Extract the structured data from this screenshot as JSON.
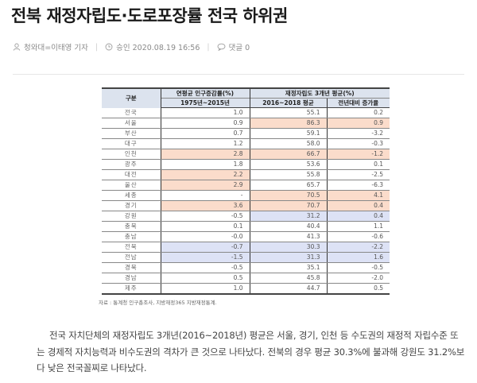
{
  "article": {
    "headline": "전북 재정자립도·도로포장률 전국 하위권",
    "meta": {
      "author_icon": "person-icon",
      "author": "청와대=이태영 기자",
      "approved_icon": "clock-icon",
      "approved": "승인 2020.08.19 16:56",
      "comments_icon": "speech-bubble-icon",
      "comments": "댓글 0",
      "separator": "|"
    },
    "body": "전국 자치단체의 재정자립도 3개년(2016~2018년) 평균은 서울, 경기, 인천 등 수도권의 재정적 자립수준 또는 경제적 자치능력과 비수도권의 격차가 큰 것으로 나타났다. 전북의 경우 평균 30.3%에 불과해 강원도 31.2%보다 낮은 전국꼴찌로 나타났다."
  },
  "table": {
    "headers": {
      "region": "구분",
      "pop_group": "연평균 인구증감률(%)",
      "pop_sub": "1975년~2015년",
      "fin_group": "재정자립도 3개년 평균(%)",
      "fin_avg": "2016~2018 평균",
      "fin_change": "전년대비 증가율"
    },
    "highlight_colors": {
      "high": "#fbdccb",
      "low": "#dde2f5"
    },
    "rows": [
      {
        "region": "전국",
        "pop": "1.0",
        "avg": "55.1",
        "chg": "0.2",
        "hp": "",
        "ha": ""
      },
      {
        "region": "서울",
        "pop": "0.9",
        "avg": "86.3",
        "chg": "0.9",
        "hp": "",
        "ha": "o"
      },
      {
        "region": "부산",
        "pop": "0.7",
        "avg": "59.1",
        "chg": "-3.2",
        "hp": "",
        "ha": ""
      },
      {
        "region": "대구",
        "pop": "1.2",
        "avg": "58.0",
        "chg": "-0.3",
        "hp": "",
        "ha": ""
      },
      {
        "region": "인천",
        "pop": "2.8",
        "avg": "66.7",
        "chg": "-1.2",
        "hp": "o",
        "ha": "o"
      },
      {
        "region": "광주",
        "pop": "1.8",
        "avg": "53.6",
        "chg": "0.1",
        "hp": "",
        "ha": ""
      },
      {
        "region": "대전",
        "pop": "2.2",
        "avg": "55.8",
        "chg": "-2.5",
        "hp": "o",
        "ha": ""
      },
      {
        "region": "울산",
        "pop": "2.9",
        "avg": "65.7",
        "chg": "-6.3",
        "hp": "o",
        "ha": ""
      },
      {
        "region": "세종",
        "pop": "-",
        "avg": "70.5",
        "chg": "4.1",
        "hp": "",
        "ha": "o"
      },
      {
        "region": "경기",
        "pop": "3.6",
        "avg": "70.7",
        "chg": "0.4",
        "hp": "o",
        "ha": "o"
      },
      {
        "region": "강원",
        "pop": "-0.5",
        "avg": "31.2",
        "chg": "0.4",
        "hp": "",
        "ha": "b"
      },
      {
        "region": "충북",
        "pop": "0.1",
        "avg": "40.4",
        "chg": "1.1",
        "hp": "",
        "ha": ""
      },
      {
        "region": "충남",
        "pop": "-0.0",
        "avg": "41.3",
        "chg": "-0.6",
        "hp": "",
        "ha": ""
      },
      {
        "region": "전북",
        "pop": "-0.7",
        "avg": "30.3",
        "chg": "-2.2",
        "hp": "b",
        "ha": "b"
      },
      {
        "region": "전남",
        "pop": "-1.5",
        "avg": "31.3",
        "chg": "1.6",
        "hp": "b",
        "ha": "b"
      },
      {
        "region": "경북",
        "pop": "-0.5",
        "avg": "35.1",
        "chg": "-0.5",
        "hp": "",
        "ha": ""
      },
      {
        "region": "경남",
        "pop": "0.5",
        "avg": "45.8",
        "chg": "-2.0",
        "hp": "",
        "ha": ""
      },
      {
        "region": "제주",
        "pop": "1.0",
        "avg": "44.7",
        "chg": "0.5",
        "hp": "",
        "ha": ""
      }
    ],
    "source": "자료 : 통계청 인구총조사, 지방재정365 지방재정통계."
  }
}
